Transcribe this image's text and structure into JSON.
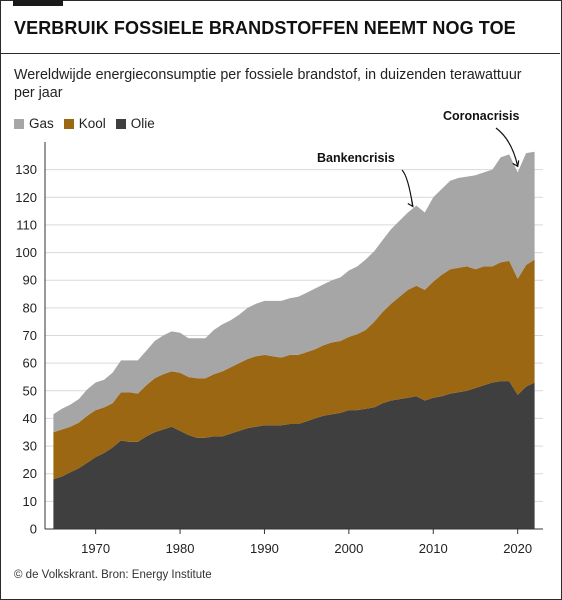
{
  "header": {
    "title": "VERBRUIK FOSSIELE BRANDSTOFFEN NEEMT NOG TOE",
    "subtitle": "Wereldwijde energieconsumptie per fossiele brandstof, in duizenden terawattuur per jaar"
  },
  "legend": [
    {
      "label": "Gas",
      "color": "#a6a6a6"
    },
    {
      "label": "Kool",
      "color": "#9c6712"
    },
    {
      "label": "Olie",
      "color": "#3f3f3f"
    }
  ],
  "footer": {
    "source": "© de Volkskrant. Bron: Energy Institute"
  },
  "chart_data": {
    "type": "area",
    "stacked": true,
    "title": "VERBRUIK FOSSIELE BRANDSTOFFEN NEEMT NOG TOE",
    "subtitle": "Wereldwijde energieconsumptie per fossiele brandstof, in duizenden terawattuur per jaar",
    "x": [
      1965,
      1966,
      1967,
      1968,
      1969,
      1970,
      1971,
      1972,
      1973,
      1974,
      1975,
      1976,
      1977,
      1978,
      1979,
      1980,
      1981,
      1982,
      1983,
      1984,
      1985,
      1986,
      1987,
      1988,
      1989,
      1990,
      1991,
      1992,
      1993,
      1994,
      1995,
      1996,
      1997,
      1998,
      1999,
      2000,
      2001,
      2002,
      2003,
      2004,
      2005,
      2006,
      2007,
      2008,
      2009,
      2010,
      2011,
      2012,
      2013,
      2014,
      2015,
      2016,
      2017,
      2018,
      2019,
      2020,
      2021,
      2022
    ],
    "series": [
      {
        "name": "Olie",
        "color": "#3f3f3f",
        "values": [
          18,
          19,
          20.5,
          22,
          24,
          26,
          27.5,
          29.5,
          32,
          31.5,
          31.5,
          33.5,
          35,
          36,
          37,
          35.5,
          34,
          33,
          33,
          33.5,
          33.5,
          34.5,
          35.5,
          36.5,
          37,
          37.5,
          37.5,
          37.5,
          38,
          38,
          39,
          40,
          41,
          41.5,
          42,
          43,
          43,
          43.5,
          44,
          45.5,
          46.5,
          47,
          47.5,
          48,
          46.5,
          47.5,
          48,
          49,
          49.5,
          50,
          51,
          52,
          53,
          53.5,
          53.5,
          48.5,
          51.5,
          53
        ]
      },
      {
        "name": "Kool",
        "color": "#9c6712",
        "values": [
          17,
          17,
          16.5,
          16.5,
          17,
          17,
          16.5,
          16,
          17.5,
          18,
          17.5,
          18.5,
          19.5,
          20,
          20,
          21,
          21,
          21.5,
          21.5,
          22.5,
          23.5,
          24,
          24.5,
          25,
          25.5,
          25.5,
          25,
          24.5,
          25,
          25,
          25,
          25,
          25.5,
          26,
          26,
          26.5,
          27.5,
          28.5,
          31,
          33,
          35,
          37,
          39,
          40,
          40,
          42,
          44,
          45,
          45,
          45,
          43,
          43,
          42,
          43,
          43.5,
          42,
          44,
          44.5
        ]
      },
      {
        "name": "Gas",
        "color": "#a6a6a6",
        "values": [
          6.5,
          7.5,
          8,
          8.5,
          9.5,
          10,
          10,
          11,
          11.5,
          11.5,
          12,
          12.5,
          13.5,
          14,
          14.5,
          14.5,
          14,
          14.5,
          14.5,
          16,
          17,
          17,
          17.5,
          18.5,
          19,
          19.5,
          20,
          20.5,
          20.5,
          21,
          21.5,
          22,
          22,
          22.5,
          23,
          24,
          24.5,
          25.5,
          25.5,
          26,
          27,
          27.5,
          28,
          29,
          28,
          30.5,
          31,
          32,
          32.5,
          32.5,
          34,
          34,
          35,
          38,
          38.5,
          38.5,
          40.5,
          39
        ]
      }
    ],
    "ylim": [
      0,
      140
    ],
    "yticks": [
      0,
      10,
      20,
      30,
      40,
      50,
      60,
      70,
      80,
      90,
      100,
      110,
      120,
      130
    ],
    "xticks": [
      1970,
      1980,
      1990,
      2000,
      2010,
      2020
    ],
    "xlim": [
      1964,
      2023
    ],
    "annotations": [
      {
        "text": "Bankencrisis",
        "x": 2009
      },
      {
        "text": "Coronacrisis",
        "x": 2020
      }
    ],
    "legend_position": "top-left",
    "grid": "horizontal"
  }
}
